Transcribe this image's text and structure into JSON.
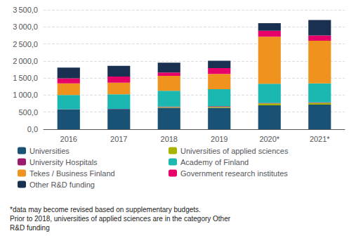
{
  "chart_data": {
    "type": "bar",
    "stacked": true,
    "grid": true,
    "legend": "bottom",
    "categories": [
      "2016",
      "2017",
      "2018",
      "2019",
      "2020*",
      "2021*"
    ],
    "series": [
      {
        "name": "Universities",
        "color": "#1a5276",
        "values": [
          580,
          590,
          630,
          630,
          700,
          720
        ]
      },
      {
        "name": "Universities of applied sciences",
        "color": "#a8b400",
        "values": [
          0,
          0,
          20,
          25,
          55,
          50
        ]
      },
      {
        "name": "University Hospitals",
        "color": "#9b1a6e",
        "values": [
          5,
          5,
          15,
          18,
          18,
          15
        ]
      },
      {
        "name": "Academy of Finland",
        "color": "#1ab8b0",
        "values": [
          420,
          430,
          460,
          500,
          560,
          560
        ]
      },
      {
        "name": "Tekes / Business Finland",
        "color": "#f0921e",
        "values": [
          340,
          340,
          440,
          450,
          1380,
          1250
        ]
      },
      {
        "name": "Government research institutes",
        "color": "#e8006a",
        "values": [
          150,
          180,
          100,
          170,
          175,
          155
        ]
      },
      {
        "name": "Other R&D funding",
        "color": "#1a3050",
        "values": [
          310,
          315,
          285,
          215,
          220,
          450
        ]
      }
    ],
    "ylim": [
      0,
      3500
    ],
    "yticks": [
      {
        "value": 0,
        "label": "0,0"
      },
      {
        "value": 500,
        "label": "500,0"
      },
      {
        "value": 1000,
        "label": "1 000,0"
      },
      {
        "value": 1500,
        "label": "1 500,0"
      },
      {
        "value": 2000,
        "label": "2 000,0"
      },
      {
        "value": 2500,
        "label": "2 500,0"
      },
      {
        "value": 3000,
        "label": "3 000,0"
      },
      {
        "value": 3500,
        "label": "3 500,0"
      }
    ],
    "annotations": [
      "*data may become revised based on supplementary budgets.\nPrior to 2018, universities of applied sciences are in the category Other\nR&D funding"
    ]
  }
}
